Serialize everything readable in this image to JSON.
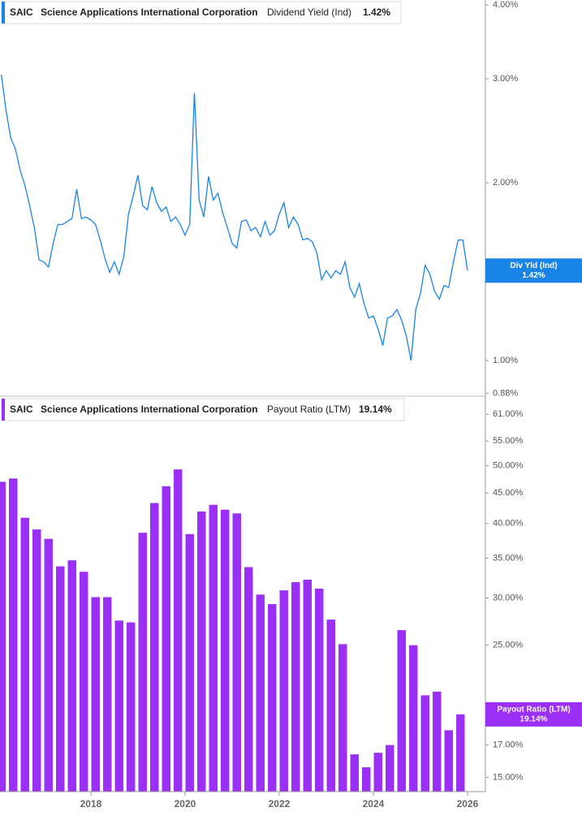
{
  "chart_data": [
    {
      "type": "line",
      "ticker": "SAIC",
      "company": "Science Applications International Corporation",
      "metric": "Dividend Yield (Ind)",
      "last_value": "1.42%",
      "badge": "Div Yld (Ind)",
      "color": "#1a84e6",
      "log_scale": true,
      "xlim": [
        2016.07,
        2026.38
      ],
      "ylim": [
        0.87,
        4.08
      ],
      "yticks": [
        {
          "value": 4.0,
          "label": "4.00%"
        },
        {
          "value": 3.0,
          "label": "3.00%"
        },
        {
          "value": 2.0,
          "label": "2.00%"
        },
        {
          "value": 1.0,
          "label": "1.00%"
        },
        {
          "value": 0.88,
          "label": "0.88%"
        }
      ],
      "x": [
        2016.1,
        2016.2,
        2016.3,
        2016.4,
        2016.5,
        2016.6,
        2016.7,
        2016.8,
        2016.9,
        2017.0,
        2017.1,
        2017.2,
        2017.3,
        2017.4,
        2017.5,
        2017.6,
        2017.7,
        2017.8,
        2017.9,
        2018.0,
        2018.1,
        2018.2,
        2018.3,
        2018.4,
        2018.5,
        2018.6,
        2018.7,
        2018.8,
        2018.9,
        2019.0,
        2019.1,
        2019.2,
        2019.3,
        2019.4,
        2019.5,
        2019.6,
        2019.7,
        2019.8,
        2019.9,
        2020.0,
        2020.1,
        2020.2,
        2020.3,
        2020.4,
        2020.5,
        2020.6,
        2020.7,
        2020.8,
        2020.9,
        2021.0,
        2021.1,
        2021.2,
        2021.3,
        2021.4,
        2021.5,
        2021.6,
        2021.7,
        2021.8,
        2021.9,
        2022.0,
        2022.1,
        2022.2,
        2022.3,
        2022.4,
        2022.5,
        2022.6,
        2022.7,
        2022.8,
        2022.9,
        2023.0,
        2023.1,
        2023.2,
        2023.3,
        2023.4,
        2023.5,
        2023.6,
        2023.7,
        2023.8,
        2023.9,
        2024.0,
        2024.1,
        2024.2,
        2024.3,
        2024.4,
        2024.5,
        2024.6,
        2024.7,
        2024.8,
        2024.9,
        2025.0,
        2025.1,
        2025.2,
        2025.3,
        2025.4,
        2025.5,
        2025.6,
        2025.7,
        2025.8,
        2025.9,
        2026.0
      ],
      "values": [
        3.05,
        2.65,
        2.38,
        2.28,
        2.1,
        1.98,
        1.83,
        1.68,
        1.48,
        1.47,
        1.44,
        1.58,
        1.7,
        1.7,
        1.72,
        1.74,
        1.95,
        1.74,
        1.75,
        1.73,
        1.7,
        1.6,
        1.49,
        1.41,
        1.47,
        1.4,
        1.5,
        1.77,
        1.9,
        2.06,
        1.83,
        1.8,
        1.97,
        1.85,
        1.79,
        1.82,
        1.72,
        1.75,
        1.7,
        1.63,
        1.7,
        2.84,
        1.87,
        1.75,
        2.05,
        1.87,
        1.92,
        1.78,
        1.68,
        1.58,
        1.55,
        1.72,
        1.73,
        1.66,
        1.68,
        1.62,
        1.72,
        1.63,
        1.66,
        1.77,
        1.85,
        1.68,
        1.75,
        1.7,
        1.6,
        1.61,
        1.59,
        1.52,
        1.37,
        1.42,
        1.38,
        1.42,
        1.4,
        1.47,
        1.33,
        1.28,
        1.35,
        1.25,
        1.18,
        1.19,
        1.13,
        1.06,
        1.18,
        1.19,
        1.22,
        1.17,
        1.1,
        1.0,
        1.22,
        1.3,
        1.45,
        1.4,
        1.31,
        1.27,
        1.34,
        1.33,
        1.47,
        1.6,
        1.6,
        1.42
      ]
    },
    {
      "type": "bar",
      "ticker": "SAIC",
      "company": "Science Applications International Corporation",
      "metric": "Payout Ratio (LTM)",
      "last_value": "19.14%",
      "color": "#9b2ff5",
      "log_scale": true,
      "xlim": [
        2016.07,
        2026.38
      ],
      "xticks": [
        2018,
        2020,
        2022,
        2024,
        2026
      ],
      "ylim": [
        14.2,
        65
      ],
      "yticks": [
        {
          "value": 61,
          "label": "61.00%"
        },
        {
          "value": 55,
          "label": "55.00%"
        },
        {
          "value": 50,
          "label": "50.00%"
        },
        {
          "value": 45,
          "label": "45.00%"
        },
        {
          "value": 40,
          "label": "40.00%"
        },
        {
          "value": 35,
          "label": "35.00%"
        },
        {
          "value": 30,
          "label": "30.00%"
        },
        {
          "value": 25,
          "label": "25.00%"
        },
        {
          "value": 17,
          "label": "17.00%"
        },
        {
          "value": 15,
          "label": "15.00%"
        }
      ],
      "x": [
        2016.1,
        2016.35,
        2016.6,
        2016.85,
        2017.1,
        2017.35,
        2017.6,
        2017.85,
        2018.1,
        2018.35,
        2018.6,
        2018.85,
        2019.1,
        2019.35,
        2019.6,
        2019.85,
        2020.1,
        2020.35,
        2020.6,
        2020.85,
        2021.1,
        2021.35,
        2021.6,
        2021.85,
        2022.1,
        2022.35,
        2022.6,
        2022.85,
        2023.1,
        2023.35,
        2023.6,
        2023.85,
        2024.1,
        2024.35,
        2024.6,
        2024.85,
        2025.1,
        2025.35,
        2025.6,
        2025.85
      ],
      "values": [
        47.0,
        47.6,
        40.9,
        39.1,
        37.7,
        33.9,
        34.7,
        33.2,
        30.1,
        30.1,
        27.5,
        27.3,
        38.6,
        43.3,
        46.2,
        49.3,
        38.4,
        41.9,
        43.0,
        42.2,
        41.6,
        33.8,
        30.4,
        29.3,
        30.9,
        31.9,
        32.2,
        31.1,
        27.6,
        25.1,
        16.4,
        15.6,
        16.5,
        17.0,
        26.5,
        25.0,
        20.6,
        20.9,
        18.0,
        19.14
      ]
    }
  ]
}
